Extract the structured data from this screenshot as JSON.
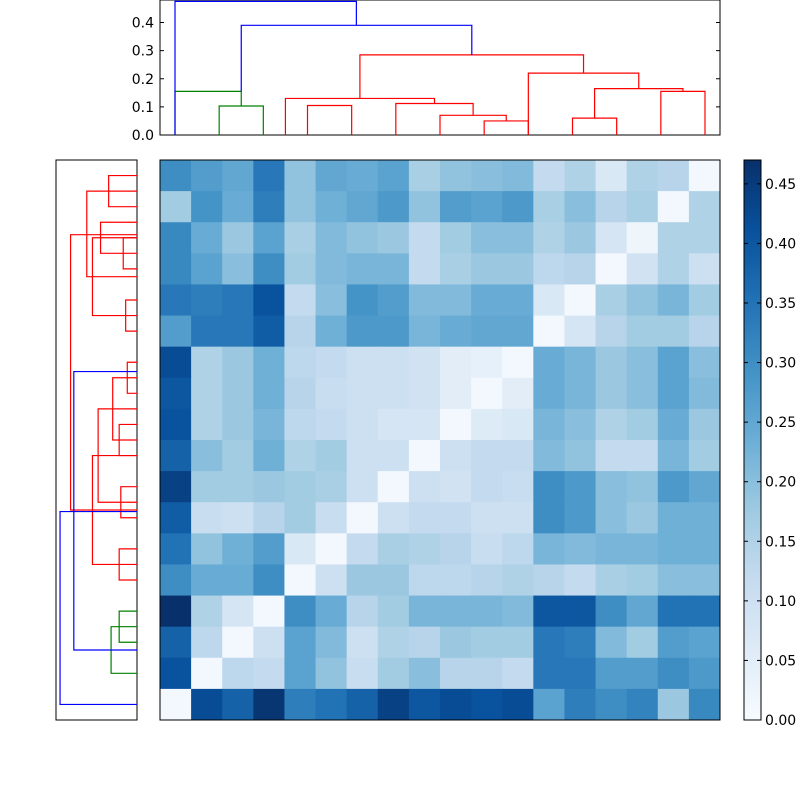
{
  "chart_data": [
    {
      "type": "dendrogram",
      "orientation": "top",
      "ylim": [
        0,
        0.48
      ],
      "yticks": [
        "0.0",
        "0.1",
        "0.2",
        "0.3",
        "0.4"
      ],
      "colors": {
        "red": "#ff0000",
        "green": "#008000",
        "blue": "#0000ff"
      },
      "n_leaves": 18,
      "links": [
        {
          "a": 1.5,
          "b": 3.0,
          "lo_a": 0,
          "lo_b": 0,
          "h": 0.103,
          "color": "green"
        },
        {
          "a": 0.0,
          "b": 2.25,
          "lo_a": 0,
          "lo_b": 0.103,
          "h": 0.155,
          "color": "green"
        },
        {
          "a": 4.5,
          "b": 6.0,
          "lo_a": 0,
          "lo_b": 0,
          "h": 0.105,
          "color": "red"
        },
        {
          "a": 10.5,
          "b": 12.0,
          "lo_a": 0,
          "lo_b": 0,
          "h": 0.05,
          "color": "red"
        },
        {
          "a": 9.0,
          "b": 11.25,
          "lo_a": 0,
          "lo_b": 0.05,
          "h": 0.07,
          "color": "red"
        },
        {
          "a": 7.5,
          "b": 10.125,
          "lo_a": 0,
          "lo_b": 0.07,
          "h": 0.112,
          "color": "red"
        },
        {
          "a": 3.75,
          "b": 8.8125,
          "lo_a": 0,
          "lo_b": 0.112,
          "h": 0.13,
          "color": "red"
        },
        {
          "a": 14.0,
          "b": 14.0,
          "lo_a": 0.0,
          "lo_b": 0.0,
          "h": 0.0,
          "color": "red"
        },
        {
          "a": 13.5,
          "b": 15.0,
          "lo_a": 0,
          "lo_b": 0,
          "h": 0.06,
          "color": "red"
        },
        {
          "a": 16.5,
          "b": 18.0,
          "lo_a": 0,
          "lo_b": 0,
          "h": 0.155,
          "color": "red"
        },
        {
          "a": 14.25,
          "b": 17.25,
          "lo_a": 0.06,
          "lo_b": 0.155,
          "h": 0.165,
          "color": "red"
        },
        {
          "a": 12.0,
          "b": 15.75,
          "lo_a": 0,
          "lo_b": 0.165,
          "h": 0.22,
          "color": "red"
        },
        {
          "a": 6.28,
          "b": 13.875,
          "lo_a": 0.13,
          "lo_b": 0.22,
          "h": 0.285,
          "color": "red"
        },
        {
          "a": 2.25,
          "b": 10.08,
          "lo_a": 0.155,
          "lo_b": 0.285,
          "h": 0.39,
          "color": "blue"
        },
        {
          "a": 0.0,
          "b": 6.16,
          "lo_a": 0,
          "lo_b": 0.39,
          "h": 0.475,
          "color": "blue"
        }
      ]
    },
    {
      "type": "dendrogram",
      "orientation": "left",
      "colors": {
        "red": "#ff0000",
        "green": "#008000",
        "blue": "#0000ff"
      },
      "rows": 18,
      "links": [
        {
          "a": 0.5,
          "b": 1.5,
          "d": 0.35
        },
        {
          "a": 2.5,
          "b": 3.5,
          "d": 0.17
        },
        {
          "a": 2.0,
          "b": 3.0,
          "d": 0.45
        },
        {
          "a": 4.5,
          "b": 5.5,
          "d": 0.14
        },
        {
          "a": 2.5,
          "b": 5.0,
          "d": 0.55
        },
        {
          "a": 1.0,
          "b": 3.75,
          "d": 0.62
        },
        {
          "a": 6.5,
          "b": 7.5,
          "d": 0.12
        },
        {
          "a": 8.5,
          "b": 9.5,
          "d": 0.22
        },
        {
          "a": 7.0,
          "b": 9.0,
          "d": 0.3
        },
        {
          "a": 10.5,
          "b": 11.5,
          "d": 0.2
        },
        {
          "a": 8.0,
          "b": 11.0,
          "d": 0.48
        },
        {
          "a": 12.5,
          "b": 13.5,
          "d": 0.22
        },
        {
          "a": 9.5,
          "b": 13.0,
          "d": 0.55
        },
        {
          "a": 2.4,
          "b": 11.25,
          "d": 0.82
        },
        {
          "a": 14.5,
          "b": 15.5,
          "d": 0.22
        },
        {
          "a": 15.0,
          "b": 16.5,
          "d": 0.32
        },
        {
          "a": 6.8,
          "b": 15.75,
          "d": 0.78
        },
        {
          "a": 11.3,
          "b": 17.5,
          "d": 0.95
        }
      ],
      "link_colors": [
        "red",
        "red",
        "red",
        "red",
        "red",
        "red",
        "red",
        "red",
        "red",
        "red",
        "red",
        "red",
        "red",
        "red",
        "green",
        "green",
        "blue",
        "blue"
      ]
    },
    {
      "type": "heatmap",
      "rows": 18,
      "cols": 18,
      "colormap": "Blues",
      "vmin": 0,
      "vmax": 0.47,
      "colorbar_ticks": [
        "0.00",
        "0.05",
        "0.10",
        "0.15",
        "0.20",
        "0.25",
        "0.30",
        "0.35",
        "0.40",
        "0.45"
      ],
      "values": [
        [
          0.3,
          0.27,
          0.25,
          0.34,
          0.19,
          0.25,
          0.24,
          0.26,
          0.16,
          0.19,
          0.2,
          0.21,
          0.12,
          0.15,
          0.07,
          0.15,
          0.14,
          0.01
        ],
        [
          0.17,
          0.29,
          0.24,
          0.33,
          0.19,
          0.23,
          0.25,
          0.28,
          0.19,
          0.27,
          0.26,
          0.28,
          0.16,
          0.2,
          0.14,
          0.16,
          0.01,
          0.15
        ],
        [
          0.31,
          0.24,
          0.18,
          0.26,
          0.16,
          0.21,
          0.19,
          0.18,
          0.12,
          0.17,
          0.2,
          0.2,
          0.15,
          0.18,
          0.08,
          0.02,
          0.15,
          0.15
        ],
        [
          0.31,
          0.26,
          0.2,
          0.3,
          0.17,
          0.21,
          0.22,
          0.22,
          0.12,
          0.16,
          0.18,
          0.18,
          0.13,
          0.14,
          0.01,
          0.09,
          0.15,
          0.1
        ],
        [
          0.34,
          0.33,
          0.34,
          0.41,
          0.12,
          0.2,
          0.29,
          0.27,
          0.21,
          0.21,
          0.24,
          0.24,
          0.07,
          0.01,
          0.16,
          0.19,
          0.22,
          0.17
        ],
        [
          0.27,
          0.34,
          0.34,
          0.39,
          0.14,
          0.23,
          0.28,
          0.28,
          0.22,
          0.24,
          0.25,
          0.25,
          0.01,
          0.08,
          0.14,
          0.17,
          0.17,
          0.14
        ],
        [
          0.42,
          0.15,
          0.18,
          0.23,
          0.13,
          0.12,
          0.1,
          0.1,
          0.09,
          0.05,
          0.04,
          0.01,
          0.24,
          0.22,
          0.18,
          0.2,
          0.26,
          0.2
        ],
        [
          0.4,
          0.15,
          0.18,
          0.23,
          0.14,
          0.11,
          0.1,
          0.1,
          0.09,
          0.05,
          0.01,
          0.05,
          0.24,
          0.22,
          0.18,
          0.2,
          0.26,
          0.21
        ],
        [
          0.41,
          0.15,
          0.18,
          0.22,
          0.13,
          0.12,
          0.1,
          0.08,
          0.08,
          0.01,
          0.06,
          0.07,
          0.22,
          0.2,
          0.15,
          0.17,
          0.24,
          0.18
        ],
        [
          0.38,
          0.2,
          0.17,
          0.23,
          0.15,
          0.17,
          0.1,
          0.1,
          0.01,
          0.1,
          0.12,
          0.12,
          0.21,
          0.19,
          0.12,
          0.12,
          0.22,
          0.17
        ],
        [
          0.44,
          0.17,
          0.17,
          0.18,
          0.17,
          0.16,
          0.1,
          0.01,
          0.1,
          0.09,
          0.12,
          0.11,
          0.3,
          0.28,
          0.2,
          0.19,
          0.28,
          0.25
        ],
        [
          0.39,
          0.11,
          0.1,
          0.14,
          0.17,
          0.11,
          0.01,
          0.1,
          0.12,
          0.12,
          0.1,
          0.1,
          0.3,
          0.28,
          0.2,
          0.18,
          0.23,
          0.23
        ],
        [
          0.35,
          0.19,
          0.23,
          0.27,
          0.07,
          0.01,
          0.12,
          0.16,
          0.15,
          0.14,
          0.11,
          0.13,
          0.22,
          0.21,
          0.22,
          0.22,
          0.23,
          0.23
        ],
        [
          0.3,
          0.24,
          0.24,
          0.3,
          0.01,
          0.1,
          0.18,
          0.18,
          0.13,
          0.13,
          0.14,
          0.15,
          0.14,
          0.12,
          0.16,
          0.17,
          0.2,
          0.2
        ],
        [
          0.47,
          0.15,
          0.08,
          0.01,
          0.3,
          0.24,
          0.14,
          0.17,
          0.22,
          0.22,
          0.22,
          0.21,
          0.4,
          0.4,
          0.3,
          0.25,
          0.35,
          0.35
        ],
        [
          0.38,
          0.13,
          0.01,
          0.1,
          0.26,
          0.21,
          0.1,
          0.15,
          0.14,
          0.18,
          0.17,
          0.17,
          0.34,
          0.33,
          0.21,
          0.17,
          0.27,
          0.26
        ],
        [
          0.41,
          0.01,
          0.13,
          0.12,
          0.26,
          0.19,
          0.11,
          0.17,
          0.2,
          0.14,
          0.14,
          0.12,
          0.34,
          0.34,
          0.27,
          0.27,
          0.3,
          0.28
        ],
        [
          0.01,
          0.42,
          0.38,
          0.46,
          0.33,
          0.35,
          0.38,
          0.44,
          0.4,
          0.42,
          0.41,
          0.42,
          0.26,
          0.33,
          0.3,
          0.32,
          0.18,
          0.31
        ]
      ]
    }
  ]
}
